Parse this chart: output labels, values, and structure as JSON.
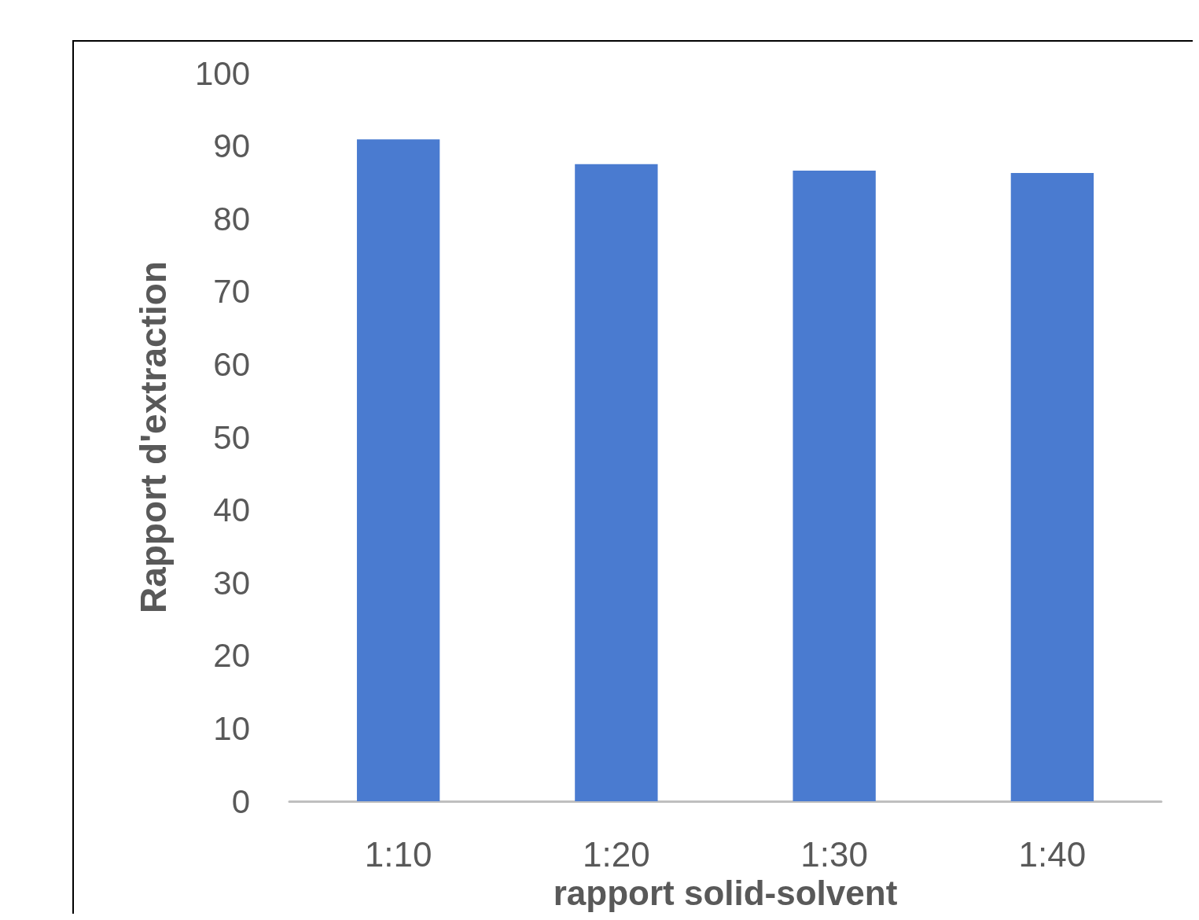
{
  "chart_data": {
    "type": "bar",
    "xlabel": "rapport solid-solvent",
    "ylabel": "Rapport d'extraction",
    "categories": [
      "1:10",
      "1:20",
      "1:30",
      "1:40"
    ],
    "values": [
      90.9,
      87.5,
      86.6,
      86.3
    ],
    "color": "#4a7bd0",
    "ylim": [
      0,
      100
    ],
    "yticks": [
      0,
      10,
      20,
      30,
      40,
      50,
      60,
      70,
      80,
      90,
      100
    ],
    "grid": false
  }
}
